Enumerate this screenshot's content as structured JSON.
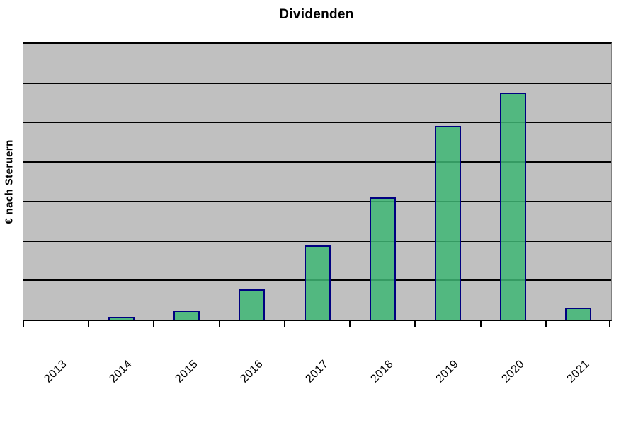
{
  "chart_data": {
    "type": "bar",
    "title": "Dividenden",
    "xlabel": "",
    "ylabel": "€ nach Steruern",
    "categories": [
      "2013",
      "2014",
      "2015",
      "2016",
      "2017",
      "2018",
      "2019",
      "2020",
      "2021"
    ],
    "values": [
      0,
      0.07,
      0.23,
      0.77,
      1.89,
      3.11,
      4.92,
      5.77,
      0.31
    ],
    "values_unit": "y-gridline intervals (the y axis shows no numeric tick labels)",
    "ylim": [
      0,
      7
    ],
    "grid": "horizontal black gridlines on gray plot background",
    "legend": "none",
    "x_tick_rotation_deg": 45,
    "colors": {
      "bar_fill": "#42B475",
      "bar_border": "#000080",
      "plot_background": "#C0C0C0",
      "gridline": "#000000",
      "page_background": "#FFFFFF",
      "text": "#000000"
    }
  }
}
